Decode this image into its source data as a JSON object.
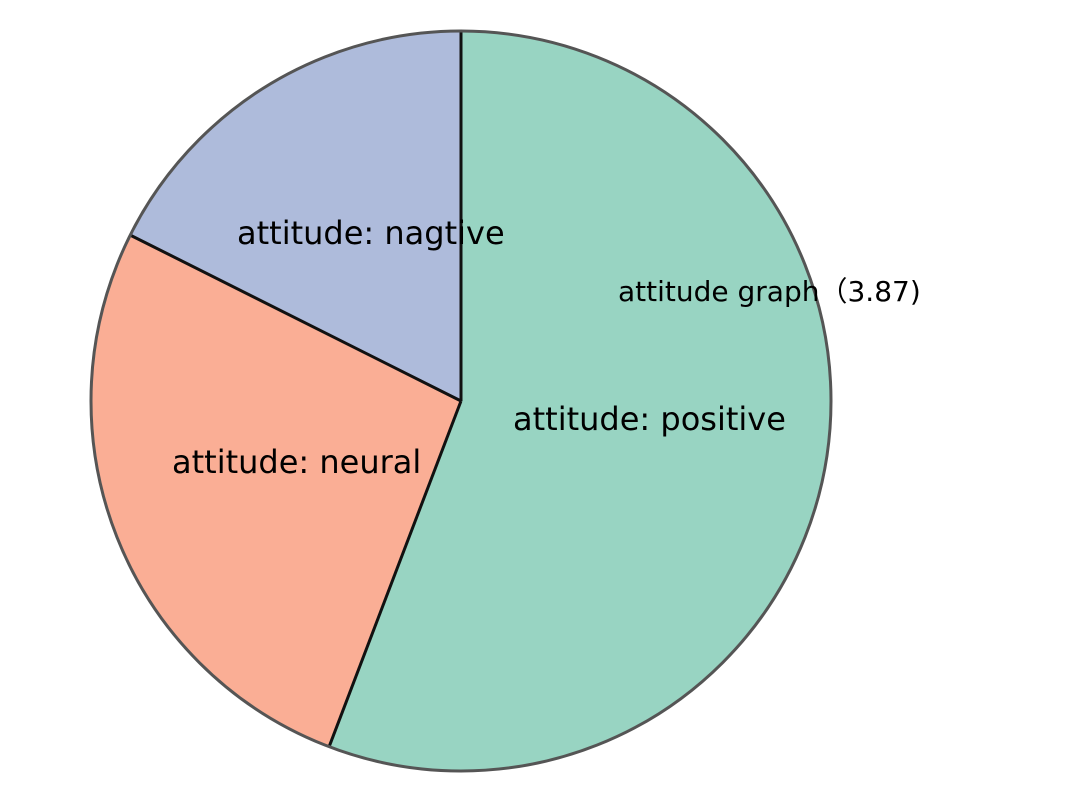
{
  "chart_data": {
    "type": "pie",
    "title": "attitude graph（3.87)",
    "slices": [
      {
        "label": "attitude: positive",
        "value": 55.8,
        "color": "#98d4c2"
      },
      {
        "label": "attitude: neural",
        "value": 26.6,
        "color": "#faae95"
      },
      {
        "label": "attitude: nagtive",
        "value": 17.6,
        "color": "#aebbdb"
      }
    ],
    "start_angle_deg": 0,
    "direction": "clockwise",
    "outline_color": "#555555",
    "slice_border_color": "#111111"
  }
}
